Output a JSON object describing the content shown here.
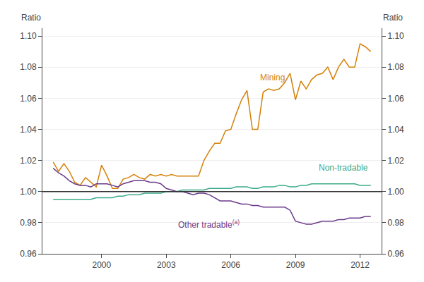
{
  "chart_data": {
    "type": "line",
    "ylabel": "Ratio",
    "y2label": "Ratio",
    "x": [
      1997.75,
      1998.0,
      1998.25,
      1998.5,
      1998.75,
      1999.0,
      1999.25,
      1999.5,
      1999.75,
      2000.0,
      2000.25,
      2000.5,
      2000.75,
      2001.0,
      2001.25,
      2001.5,
      2001.75,
      2002.0,
      2002.25,
      2002.5,
      2002.75,
      2003.0,
      2003.25,
      2003.5,
      2003.75,
      2004.0,
      2004.25,
      2004.5,
      2004.75,
      2005.0,
      2005.25,
      2005.5,
      2005.75,
      2006.0,
      2006.25,
      2006.5,
      2006.75,
      2007.0,
      2007.25,
      2007.5,
      2007.75,
      2008.0,
      2008.25,
      2008.5,
      2008.75,
      2009.0,
      2009.25,
      2009.5,
      2009.75,
      2010.0,
      2010.25,
      2010.5,
      2010.75,
      2011.0,
      2011.25,
      2011.5,
      2011.75,
      2012.0,
      2012.25,
      2012.5
    ],
    "series": [
      {
        "color": "#d4820a",
        "values": [
          1.019,
          1.013,
          1.018,
          1.013,
          1.006,
          1.004,
          1.009,
          1.006,
          1.003,
          1.017,
          1.01,
          1.002,
          1.002,
          1.008,
          1.009,
          1.011,
          1.009,
          1.008,
          1.011,
          1.01,
          1.011,
          1.01,
          1.011,
          1.01,
          1.01,
          1.01,
          1.01,
          1.01,
          1.02,
          1.026,
          1.031,
          1.031,
          1.039,
          1.04,
          1.05,
          1.059,
          1.065,
          1.04,
          1.04,
          1.064,
          1.066,
          1.065,
          1.066,
          1.07,
          1.076,
          1.059,
          1.071,
          1.066,
          1.072,
          1.075,
          1.076,
          1.08,
          1.072,
          1.08,
          1.085,
          1.08,
          1.08,
          1.095,
          1.093,
          1.09
        ]
      },
      {
        "color": "#3aaa8a",
        "values": [
          0.995,
          0.995,
          0.995,
          0.995,
          0.995,
          0.995,
          0.995,
          0.995,
          0.996,
          0.996,
          0.996,
          0.996,
          0.997,
          0.997,
          0.998,
          0.998,
          0.998,
          0.999,
          0.999,
          0.999,
          0.999,
          1.0,
          1.0,
          1.0,
          1.001,
          1.001,
          1.001,
          1.001,
          1.001,
          1.002,
          1.002,
          1.002,
          1.002,
          1.002,
          1.003,
          1.003,
          1.003,
          1.002,
          1.002,
          1.003,
          1.003,
          1.003,
          1.004,
          1.004,
          1.003,
          1.003,
          1.004,
          1.004,
          1.005,
          1.005,
          1.005,
          1.005,
          1.005,
          1.005,
          1.005,
          1.005,
          1.005,
          1.004,
          1.004,
          1.004
        ]
      },
      {
        "color": "#6a3a8a",
        "values": [
          1.015,
          1.012,
          1.01,
          1.007,
          1.005,
          1.004,
          1.004,
          1.003,
          1.005,
          1.005,
          1.005,
          1.004,
          1.003,
          1.005,
          1.006,
          1.007,
          1.007,
          1.007,
          1.006,
          1.006,
          1.005,
          1.002,
          1.001,
          1.0,
          1.0,
          0.999,
          0.998,
          0.999,
          0.999,
          0.998,
          0.996,
          0.994,
          0.994,
          0.994,
          0.993,
          0.992,
          0.992,
          0.991,
          0.991,
          0.99,
          0.99,
          0.99,
          0.99,
          0.99,
          0.988,
          0.981,
          0.98,
          0.979,
          0.979,
          0.98,
          0.981,
          0.981,
          0.981,
          0.982,
          0.982,
          0.983,
          0.983,
          0.983,
          0.984,
          0.984
        ]
      }
    ],
    "hlines": [
      {
        "value": 1.0,
        "color": "#333333"
      }
    ],
    "annotations": [
      {
        "text": "Mining",
        "x": 2007.3,
        "y": 1.069,
        "color": "#d4820a"
      },
      {
        "text": "Non-tradable",
        "x": 2010.0,
        "y": 1.011,
        "color": "#3aaa8a"
      },
      {
        "text": "Other tradable",
        "superscript": "(a)",
        "x": 2003.5,
        "y": 0.9745,
        "color": "#6a3a8a"
      }
    ],
    "xlim": [
      1997.25,
      2013.0
    ],
    "xticks": [
      2000,
      2003,
      2006,
      2009,
      2012
    ],
    "ylim": [
      0.96,
      1.105
    ],
    "yticks": [
      0.96,
      0.98,
      {
        "value": 1.0,
        "label": "1.00"
      },
      1.02,
      1.04,
      1.06,
      1.08,
      {
        "value": 1.1,
        "label": "1.10"
      }
    ],
    "y2lim": [
      0.96,
      1.105
    ],
    "y2ticks": [
      0.96,
      0.98,
      {
        "value": 1.0,
        "label": "1.00"
      },
      1.02,
      1.04,
      1.06,
      1.08,
      {
        "value": 1.1,
        "label": "1.10"
      }
    ],
    "grid": "y"
  }
}
